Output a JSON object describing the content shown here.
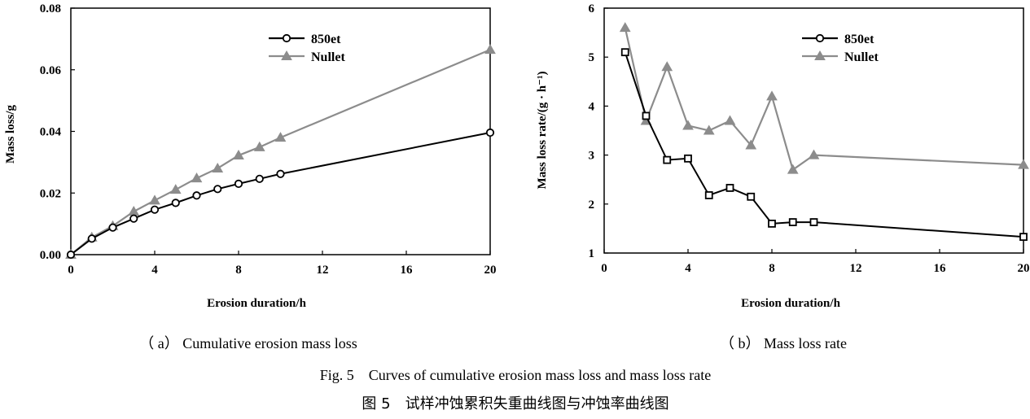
{
  "chart_data": [
    {
      "type": "line",
      "title": "",
      "subcaption": "（ a） Cumulative erosion mass loss",
      "xlabel": "Erosion duration/h",
      "ylabel": "Mass loss/g",
      "xlim": [
        0,
        20
      ],
      "ylim": [
        0,
        0.08
      ],
      "xticks": [
        0,
        4,
        8,
        12,
        16,
        20
      ],
      "yticks": [
        0.0,
        0.02,
        0.04,
        0.06,
        0.08
      ],
      "ytick_labels": [
        "0.00",
        "0.02",
        "0.04",
        "0.06",
        "0.08"
      ],
      "legend_position": "top-center",
      "grid": false,
      "series": [
        {
          "name": "850et",
          "marker": "circle",
          "color": "#000000",
          "x": [
            0,
            1,
            2,
            3,
            4,
            5,
            6,
            7,
            8,
            9,
            10,
            20
          ],
          "y": [
            0.0,
            0.0052,
            0.0088,
            0.0117,
            0.0146,
            0.0168,
            0.0192,
            0.0213,
            0.023,
            0.0246,
            0.0262,
            0.0396
          ]
        },
        {
          "name": "Nullet",
          "marker": "triangle",
          "color": "#8c8c8c",
          "x": [
            0,
            1,
            2,
            3,
            4,
            5,
            6,
            7,
            8,
            9,
            10,
            20
          ],
          "y": [
            0.0,
            0.0056,
            0.0093,
            0.014,
            0.0176,
            0.0211,
            0.0248,
            0.028,
            0.0322,
            0.0349,
            0.038,
            0.0665
          ]
        }
      ]
    },
    {
      "type": "line",
      "title": "",
      "subcaption": "（ b） Mass loss rate",
      "xlabel": "Erosion duration/h",
      "ylabel": "Mass loss rate/(g · h⁻¹)",
      "xlim": [
        0,
        20
      ],
      "ylim": [
        1,
        6
      ],
      "xticks": [
        0,
        4,
        8,
        12,
        16,
        20
      ],
      "yticks": [
        1,
        2,
        3,
        4,
        5,
        6
      ],
      "ytick_labels": [
        "1",
        "2",
        "3",
        "4",
        "5",
        "6"
      ],
      "legend_position": "top-center",
      "grid": false,
      "series": [
        {
          "name": "850et",
          "marker": "square",
          "legend_marker": "circle",
          "color": "#000000",
          "x": [
            1,
            2,
            3,
            4,
            5,
            6,
            7,
            8,
            9,
            10,
            20
          ],
          "y": [
            5.1,
            3.8,
            2.9,
            2.93,
            2.18,
            2.33,
            2.15,
            1.6,
            1.63,
            1.63,
            1.33
          ]
        },
        {
          "name": "Nullet",
          "marker": "triangle",
          "color": "#8c8c8c",
          "x": [
            1,
            2,
            3,
            4,
            5,
            6,
            7,
            8,
            9,
            10,
            20
          ],
          "y": [
            5.6,
            3.7,
            4.8,
            3.6,
            3.5,
            3.7,
            3.2,
            4.2,
            2.7,
            3.0,
            2.8
          ]
        }
      ]
    }
  ],
  "caption_en": "Fig. 5　Curves of cumulative erosion mass loss and mass loss rate",
  "caption_zh": "图 5　试样冲蚀累积失重曲线图与冲蚀率曲线图"
}
